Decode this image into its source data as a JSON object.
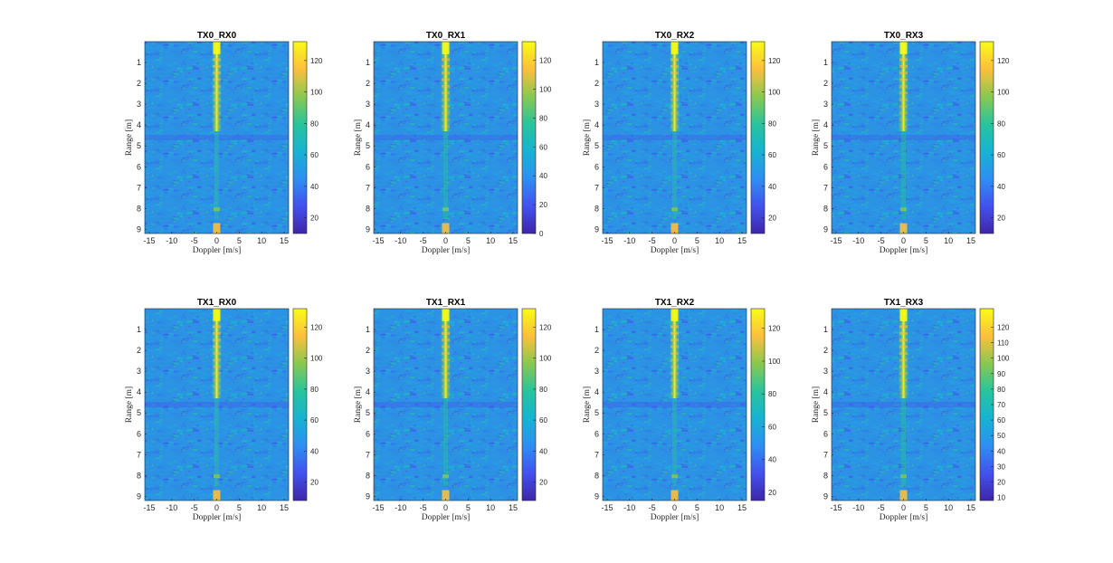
{
  "chart_data": [
    {
      "type": "heatmap",
      "title": "TX0_RX0",
      "xlabel": "Doppler [m/s]",
      "ylabel": "Range [m]",
      "xticks": [
        -15,
        -10,
        -5,
        0,
        5,
        10,
        15
      ],
      "yticks": [
        1,
        2,
        3,
        4,
        5,
        6,
        7,
        8,
        9
      ],
      "xlim": [
        -16,
        16
      ],
      "ylim": [
        0,
        9.2
      ],
      "y_reversed": true,
      "colorbar": {
        "ticks": [
          20,
          40,
          60,
          80,
          100,
          120
        ],
        "range": [
          10,
          132
        ]
      }
    },
    {
      "type": "heatmap",
      "title": "TX0_RX1",
      "xlabel": "Doppler [m/s]",
      "ylabel": "Range [m]",
      "xticks": [
        -15,
        -10,
        -5,
        0,
        5,
        10,
        15
      ],
      "yticks": [
        1,
        2,
        3,
        4,
        5,
        6,
        7,
        8,
        9
      ],
      "xlim": [
        -16,
        16
      ],
      "ylim": [
        0,
        9.2
      ],
      "y_reversed": true,
      "colorbar": {
        "ticks": [
          0,
          20,
          40,
          60,
          80,
          100,
          120
        ],
        "range": [
          0,
          133
        ]
      }
    },
    {
      "type": "heatmap",
      "title": "TX0_RX2",
      "xlabel": "Doppler [m/s]",
      "ylabel": "Range [m]",
      "xticks": [
        -15,
        -10,
        -5,
        0,
        5,
        10,
        15
      ],
      "yticks": [
        1,
        2,
        3,
        4,
        5,
        6,
        7,
        8,
        9
      ],
      "xlim": [
        -16,
        16
      ],
      "ylim": [
        0,
        9.2
      ],
      "y_reversed": true,
      "colorbar": {
        "ticks": [
          20,
          40,
          60,
          80,
          100,
          120
        ],
        "range": [
          10,
          132
        ]
      }
    },
    {
      "type": "heatmap",
      "title": "TX0_RX3",
      "xlabel": "Doppler [m/s]",
      "ylabel": "Range [m]",
      "xticks": [
        -15,
        -10,
        -5,
        0,
        5,
        10,
        15
      ],
      "yticks": [
        1,
        2,
        3,
        4,
        5,
        6,
        7,
        8,
        9
      ],
      "xlim": [
        -16,
        16
      ],
      "ylim": [
        0,
        9.2
      ],
      "y_reversed": true,
      "colorbar": {
        "ticks": [
          20,
          40,
          60,
          80,
          100,
          120
        ],
        "range": [
          10,
          132
        ]
      }
    },
    {
      "type": "heatmap",
      "title": "TX1_RX0",
      "xlabel": "Doppler [m/s]",
      "ylabel": "Range [m]",
      "xticks": [
        -15,
        -10,
        -5,
        0,
        5,
        10,
        15
      ],
      "yticks": [
        1,
        2,
        3,
        4,
        5,
        6,
        7,
        8,
        9
      ],
      "xlim": [
        -16,
        16
      ],
      "ylim": [
        0,
        9.2
      ],
      "y_reversed": true,
      "colorbar": {
        "ticks": [
          20,
          40,
          60,
          80,
          100,
          120
        ],
        "range": [
          8,
          132
        ]
      }
    },
    {
      "type": "heatmap",
      "title": "TX1_RX1",
      "xlabel": "Doppler [m/s]",
      "ylabel": "Range [m]",
      "xticks": [
        -15,
        -10,
        -5,
        0,
        5,
        10,
        15
      ],
      "yticks": [
        1,
        2,
        3,
        4,
        5,
        6,
        7,
        8,
        9
      ],
      "xlim": [
        -16,
        16
      ],
      "ylim": [
        0,
        9.2
      ],
      "y_reversed": true,
      "colorbar": {
        "ticks": [
          20,
          40,
          60,
          80,
          100,
          120
        ],
        "range": [
          8,
          132
        ]
      }
    },
    {
      "type": "heatmap",
      "title": "TX1_RX2",
      "xlabel": "Doppler [m/s]",
      "ylabel": "Range [m]",
      "xticks": [
        -15,
        -10,
        -5,
        0,
        5,
        10,
        15
      ],
      "yticks": [
        1,
        2,
        3,
        4,
        5,
        6,
        7,
        8,
        9
      ],
      "xlim": [
        -16,
        16
      ],
      "ylim": [
        0,
        9.2
      ],
      "y_reversed": true,
      "colorbar": {
        "ticks": [
          20,
          40,
          60,
          80,
          100,
          120
        ],
        "range": [
          15,
          132
        ]
      }
    },
    {
      "type": "heatmap",
      "title": "TX1_RX3",
      "xlabel": "Doppler [m/s]",
      "ylabel": "Range [m]",
      "xticks": [
        -15,
        -10,
        -5,
        0,
        5,
        10,
        15
      ],
      "yticks": [
        1,
        2,
        3,
        4,
        5,
        6,
        7,
        8,
        9
      ],
      "xlim": [
        -16,
        16
      ],
      "ylim": [
        0,
        9.2
      ],
      "y_reversed": true,
      "colorbar": {
        "ticks": [
          10,
          20,
          30,
          40,
          50,
          60,
          70,
          80,
          90,
          100,
          110,
          120
        ],
        "range": [
          8,
          132
        ]
      }
    }
  ],
  "colormap": [
    "#3e26a8",
    "#4352ef",
    "#2d8ff2",
    "#17b3d1",
    "#28c49c",
    "#8ac850",
    "#fcbf3c",
    "#f9fb15"
  ]
}
